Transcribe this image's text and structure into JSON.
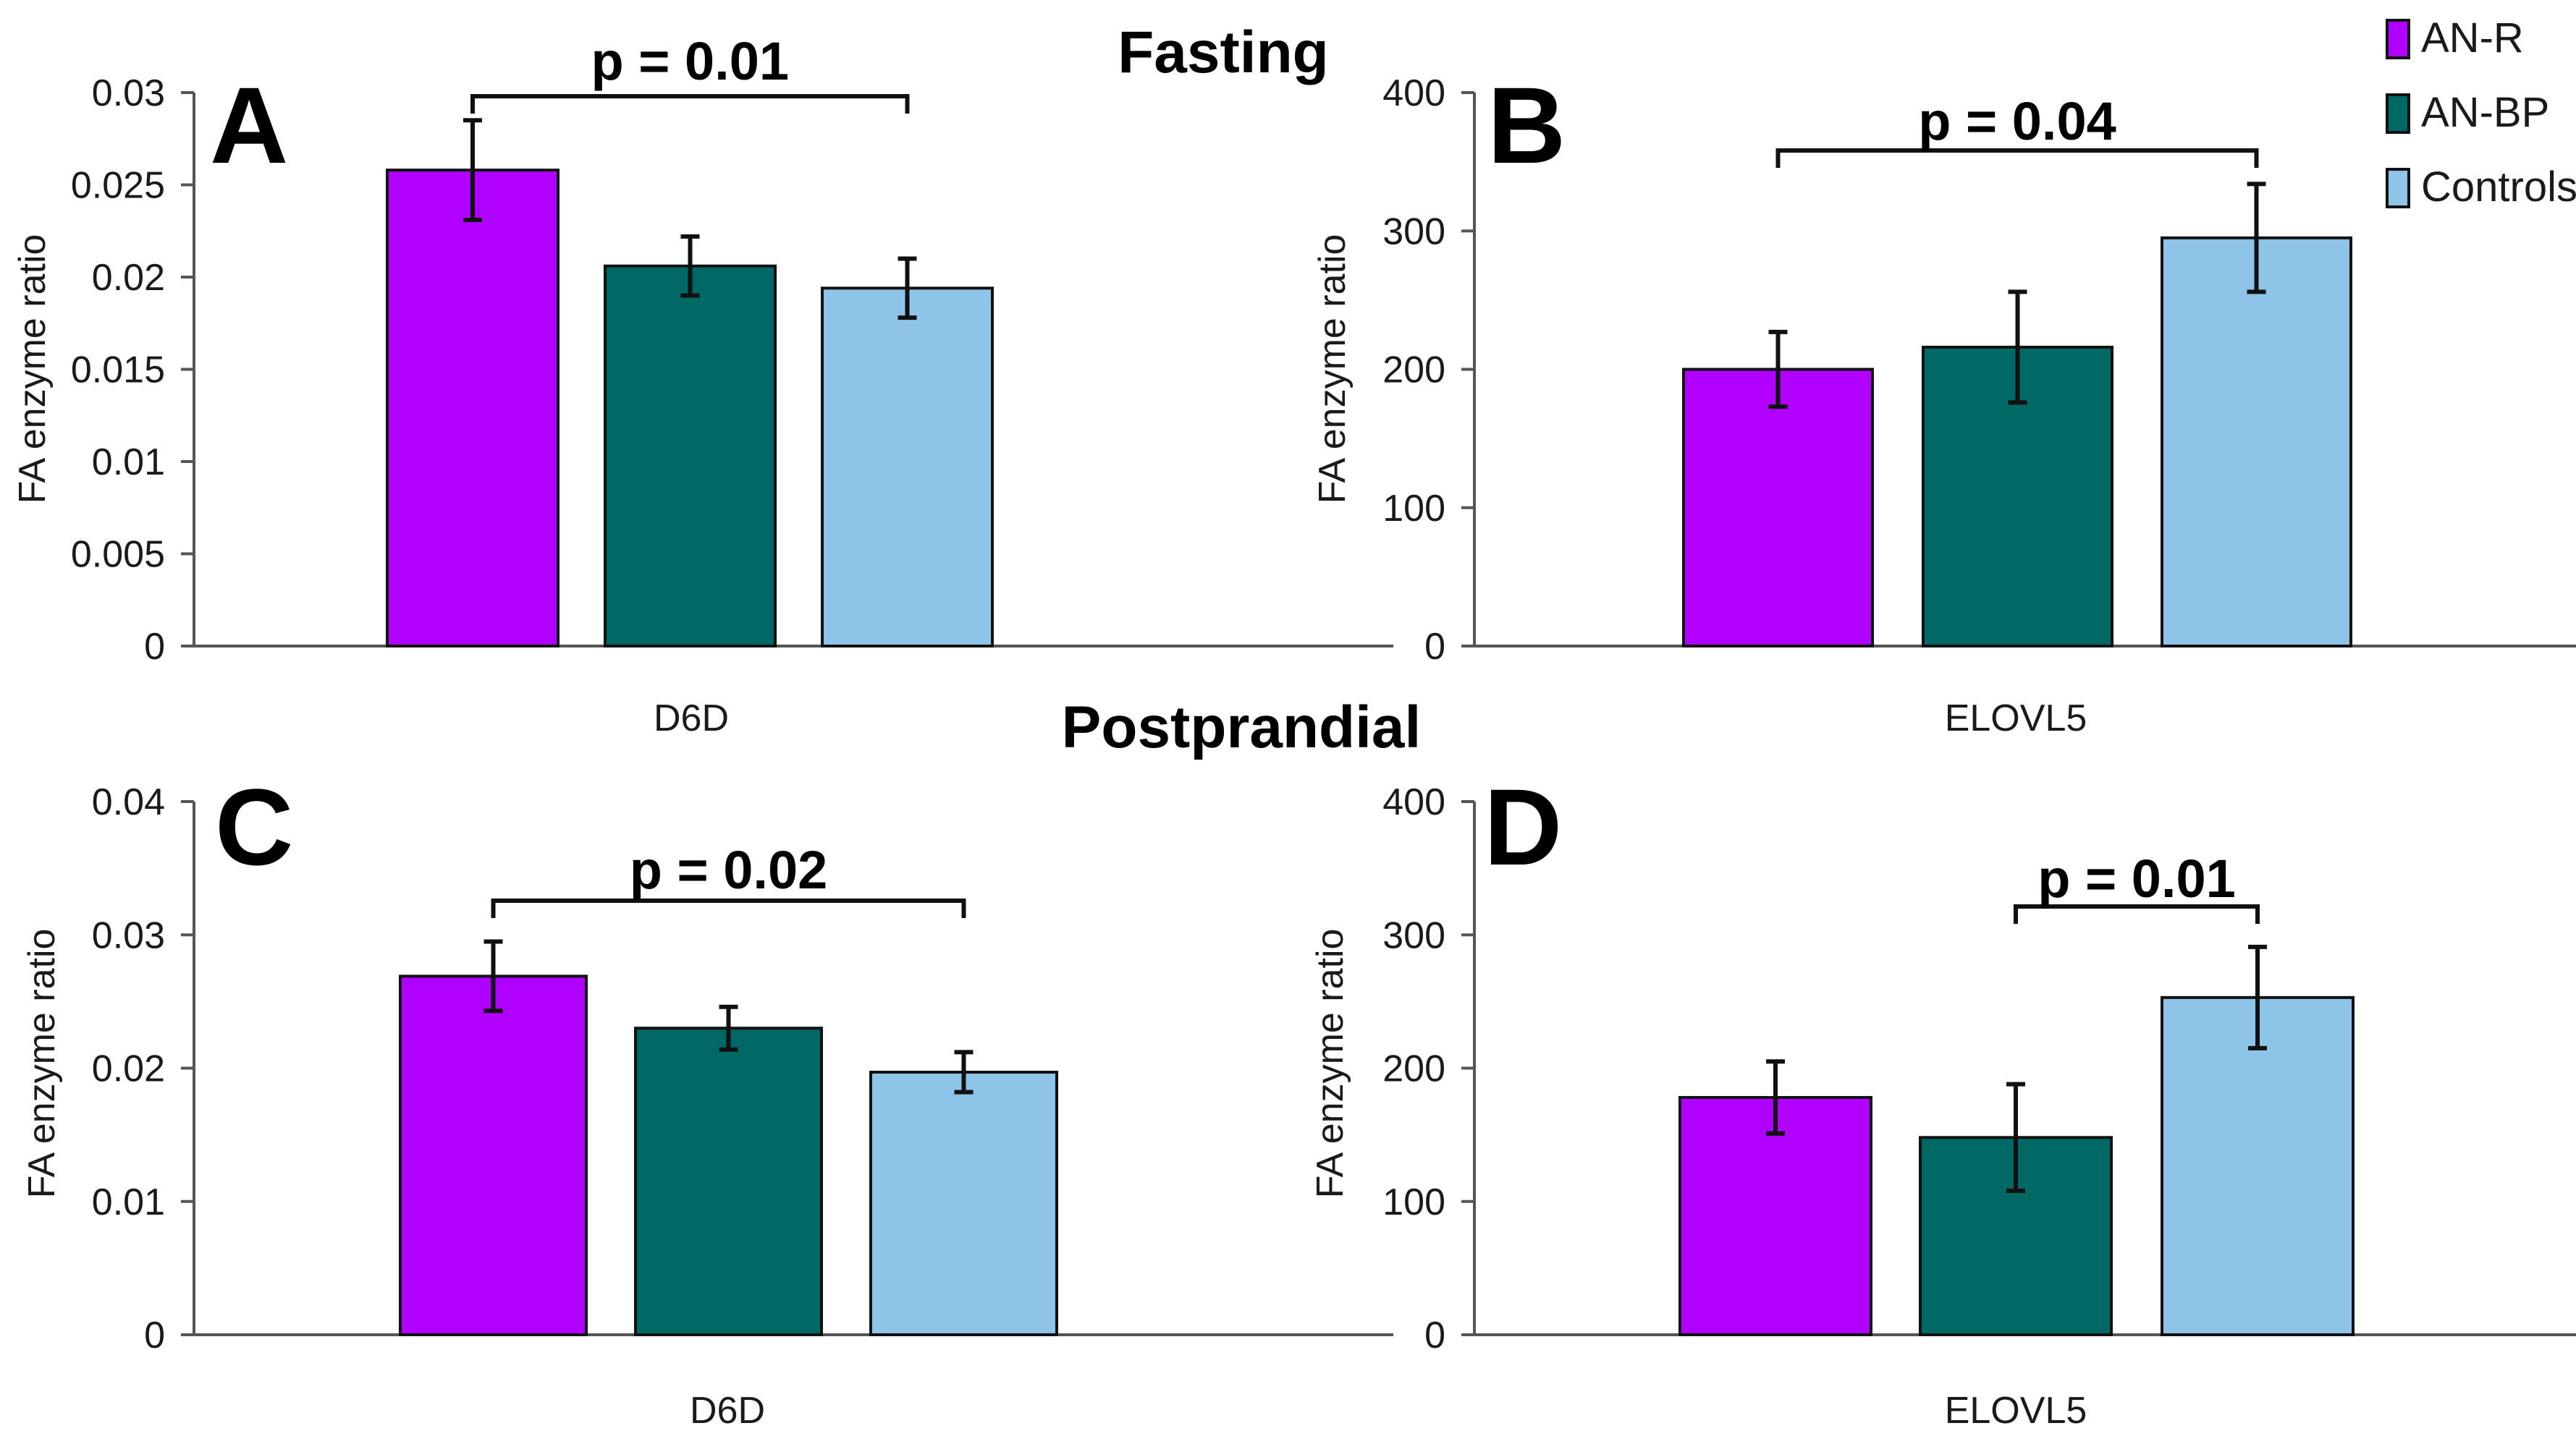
{
  "figure": {
    "section_titles": {
      "fasting": "Fasting",
      "postprandial": "Postprandial"
    }
  },
  "legend": [
    {
      "label": "AN-R",
      "color": "#b000ff"
    },
    {
      "label": "AN-BP",
      "color": "#006966"
    },
    {
      "label": "Controls",
      "color": "#8ec4e8"
    }
  ],
  "chart_data": [
    {
      "panel": "A",
      "type": "bar",
      "condition": "Fasting",
      "categories": [
        "D6D"
      ],
      "ylabel": "FA enzyme ratio",
      "ylim": [
        0,
        0.03
      ],
      "yticks": [
        0,
        0.005,
        0.01,
        0.015,
        0.02,
        0.025,
        0.03
      ],
      "ytick_labels": [
        "0",
        "0.005",
        "0.01",
        "0.015",
        "0.02",
        "0.025",
        "0.03"
      ],
      "series": [
        {
          "name": "AN-R",
          "values": [
            0.0258
          ],
          "error": [
            0.0027
          ]
        },
        {
          "name": "AN-BP",
          "values": [
            0.0206
          ],
          "error": [
            0.0016
          ]
        },
        {
          "name": "Controls",
          "values": [
            0.0194
          ],
          "error": [
            0.0016
          ]
        }
      ],
      "significance": {
        "label": "p = 0.01",
        "between": [
          "AN-R",
          "Controls"
        ]
      }
    },
    {
      "panel": "B",
      "type": "bar",
      "condition": "Fasting",
      "categories": [
        "ELOVL5"
      ],
      "ylabel": "FA enzyme ratio",
      "ylim": [
        0,
        400
      ],
      "yticks": [
        0,
        100,
        200,
        300,
        400
      ],
      "ytick_labels": [
        "0",
        "100",
        "200",
        "300",
        "400"
      ],
      "series": [
        {
          "name": "AN-R",
          "values": [
            200
          ],
          "error": [
            27
          ]
        },
        {
          "name": "AN-BP",
          "values": [
            216
          ],
          "error": [
            40
          ]
        },
        {
          "name": "Controls",
          "values": [
            295
          ],
          "error": [
            39
          ]
        }
      ],
      "significance": {
        "label": "p = 0.04",
        "between": [
          "AN-R",
          "Controls"
        ]
      }
    },
    {
      "panel": "C",
      "type": "bar",
      "condition": "Postprandial",
      "categories": [
        "D6D"
      ],
      "ylabel": "FA enzyme ratio",
      "ylim": [
        0,
        0.04
      ],
      "yticks": [
        0,
        0.01,
        0.02,
        0.03,
        0.04
      ],
      "ytick_labels": [
        "0",
        "0.01",
        "0.02",
        "0.03",
        "0.04"
      ],
      "series": [
        {
          "name": "AN-R",
          "values": [
            0.0269
          ],
          "error": [
            0.0026
          ]
        },
        {
          "name": "AN-BP",
          "values": [
            0.023
          ],
          "error": [
            0.0016
          ]
        },
        {
          "name": "Controls",
          "values": [
            0.0197
          ],
          "error": [
            0.0015
          ]
        }
      ],
      "significance": {
        "label": "p = 0.02",
        "between": [
          "AN-R",
          "Controls"
        ]
      }
    },
    {
      "panel": "D",
      "type": "bar",
      "condition": "Postprandial",
      "categories": [
        "ELOVL5"
      ],
      "ylabel": "FA enzyme ratio",
      "ylim": [
        0,
        400
      ],
      "yticks": [
        0,
        100,
        200,
        300,
        400
      ],
      "ytick_labels": [
        "0",
        "100",
        "200",
        "300",
        "400"
      ],
      "series": [
        {
          "name": "AN-R",
          "values": [
            178
          ],
          "error": [
            27
          ]
        },
        {
          "name": "AN-BP",
          "values": [
            148
          ],
          "error": [
            40
          ]
        },
        {
          "name": "Controls",
          "values": [
            253
          ],
          "error": [
            38
          ]
        }
      ],
      "significance": {
        "label": "p = 0.01",
        "between": [
          "AN-BP",
          "Controls"
        ]
      }
    }
  ]
}
